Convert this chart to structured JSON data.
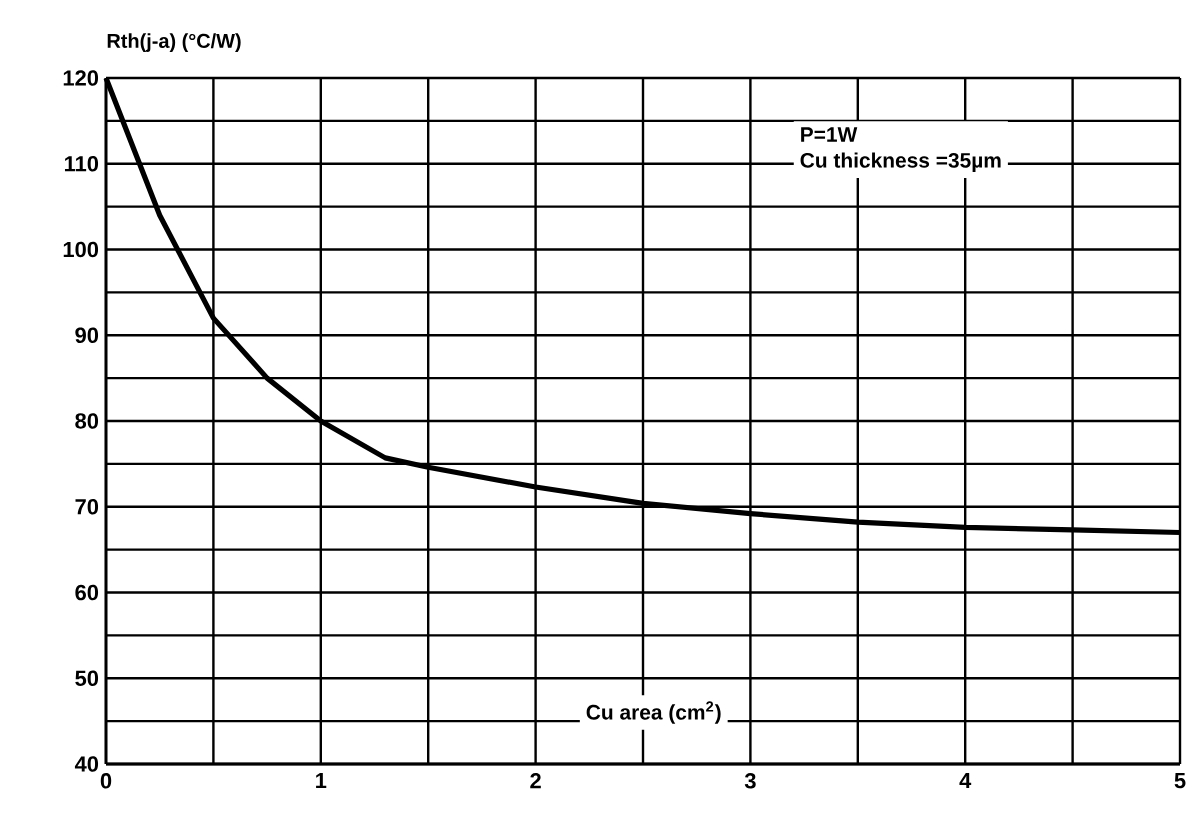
{
  "chart_data": {
    "type": "line",
    "ylabel": "Rth(j-a) (°C/W)",
    "xlabel": "Cu area (cm$^{2}$)",
    "annotations": [
      "P=1W",
      "Cu thickness =35µm"
    ],
    "x": [
      0,
      0.25,
      0.5,
      0.75,
      1,
      1.3,
      1.5,
      2,
      2.5,
      3,
      3.5,
      4,
      4.5,
      5
    ],
    "series": [
      {
        "color": "#000000",
        "values": [
          120,
          104,
          92,
          85,
          80,
          75.7,
          74.6,
          72.3,
          70.4,
          69.2,
          68.2,
          67.6,
          67.3,
          67
        ]
      }
    ],
    "xlim": [
      0,
      5
    ],
    "ylim": [
      40,
      120
    ],
    "xticks": [
      0,
      1,
      2,
      3,
      4,
      5
    ],
    "yticks": [
      40,
      50,
      60,
      70,
      80,
      90,
      100,
      110,
      120
    ],
    "grid": true,
    "marker": "none",
    "line_style": "solid"
  }
}
